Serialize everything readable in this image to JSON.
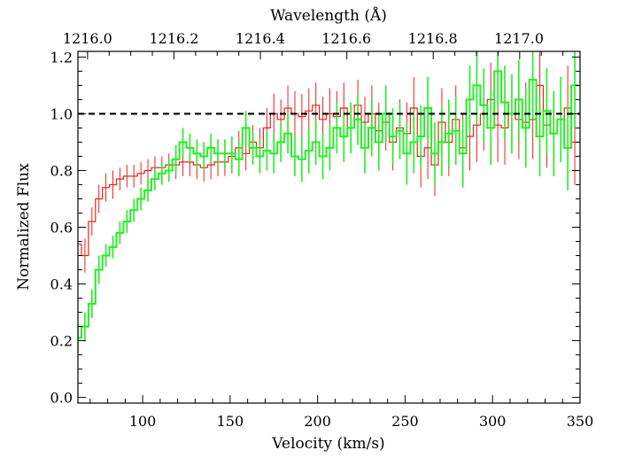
{
  "chart_data": {
    "type": "line",
    "step": true,
    "title": "",
    "xlabel": "Velocity (km/s)",
    "ylabel": "Normalized Flux",
    "top_xlabel": "Wavelength (Å)",
    "xlim": [
      63,
      350
    ],
    "ylim": [
      -0.02,
      1.22
    ],
    "x_ticks": [
      100,
      150,
      200,
      250,
      300,
      350
    ],
    "x_tick_labels": [
      "100",
      "150",
      "200",
      "250",
      "300",
      "350"
    ],
    "y_ticks": [
      0.0,
      0.2,
      0.4,
      0.6,
      0.8,
      1.0,
      1.2
    ],
    "y_tick_labels": [
      "0.0",
      "0.2",
      "0.4",
      "0.6",
      "0.8",
      "1.0",
      "1.2"
    ],
    "top_ticks": [
      1216.0,
      1216.2,
      1216.4,
      1216.6,
      1216.8,
      1217.0
    ],
    "top_tick_labels": [
      "1216.0",
      "1216.2",
      "1216.4",
      "1216.6",
      "1216.8",
      "1217.0"
    ],
    "top_tick_velocity": [
      68.5,
      117.9,
      167.2,
      216.5,
      265.8,
      315.1
    ],
    "reference_line": {
      "y": 1.0,
      "style": "dashed",
      "color": "#000000"
    },
    "grid": false,
    "series": [
      {
        "color": "#ee2020",
        "style": "step-with-errorbars",
        "x": [
          63,
          67,
          71,
          75,
          79,
          83,
          87,
          91,
          95,
          99,
          103,
          107,
          111,
          115,
          119,
          123,
          127,
          131,
          135,
          139,
          143,
          147,
          151,
          155,
          159,
          163,
          167,
          171,
          175,
          179,
          183,
          187,
          191,
          195,
          199,
          203,
          207,
          211,
          215,
          219,
          223,
          227,
          231,
          235,
          239,
          243,
          247,
          251,
          255,
          259,
          263,
          267,
          271,
          275,
          279,
          283,
          287,
          291,
          295,
          299,
          303,
          307,
          311,
          315,
          319,
          323,
          327,
          331,
          335,
          339,
          343,
          347
        ],
        "y": [
          0.54,
          0.5,
          0.62,
          0.7,
          0.74,
          0.75,
          0.77,
          0.78,
          0.78,
          0.79,
          0.8,
          0.81,
          0.81,
          0.82,
          0.82,
          0.83,
          0.83,
          0.82,
          0.81,
          0.82,
          0.83,
          0.83,
          0.85,
          0.88,
          0.86,
          0.9,
          0.88,
          0.95,
          1.0,
          0.98,
          1.02,
          1.0,
          0.99,
          1.01,
          1.03,
          0.98,
          1.0,
          0.99,
          1.02,
          0.95,
          1.03,
          0.97,
          1.0,
          0.94,
          0.97,
          0.9,
          0.95,
          0.93,
          1.02,
          0.85,
          0.88,
          0.82,
          0.97,
          0.9,
          0.98,
          0.88,
          0.92,
          0.96,
          1.0,
          1.05,
          0.96,
          0.95,
          1.0,
          0.98,
          0.97,
          0.98,
          1.1,
          0.96,
          0.93,
          0.98,
          1.02,
          0.9
        ],
        "err": [
          0.06,
          0.06,
          0.05,
          0.05,
          0.05,
          0.05,
          0.04,
          0.04,
          0.04,
          0.04,
          0.04,
          0.04,
          0.04,
          0.04,
          0.05,
          0.05,
          0.05,
          0.05,
          0.05,
          0.05,
          0.05,
          0.05,
          0.06,
          0.06,
          0.06,
          0.06,
          0.07,
          0.07,
          0.07,
          0.07,
          0.08,
          0.08,
          0.08,
          0.08,
          0.08,
          0.08,
          0.09,
          0.09,
          0.09,
          0.09,
          0.09,
          0.09,
          0.1,
          0.1,
          0.1,
          0.1,
          0.1,
          0.11,
          0.11,
          0.11,
          0.11,
          0.11,
          0.12,
          0.12,
          0.12,
          0.12,
          0.12,
          0.13,
          0.13,
          0.13,
          0.13,
          0.13,
          0.14,
          0.14,
          0.14,
          0.14,
          0.14,
          0.15,
          0.15,
          0.15,
          0.15,
          0.15
        ]
      },
      {
        "color": "#22ee22",
        "style": "step-with-errorbars",
        "x": [
          63,
          67,
          71,
          75,
          79,
          83,
          87,
          91,
          95,
          99,
          103,
          107,
          111,
          115,
          119,
          123,
          127,
          131,
          135,
          139,
          143,
          147,
          151,
          155,
          159,
          163,
          167,
          171,
          175,
          179,
          183,
          187,
          191,
          195,
          199,
          203,
          207,
          211,
          215,
          219,
          223,
          227,
          231,
          235,
          239,
          243,
          247,
          251,
          255,
          259,
          263,
          267,
          271,
          275,
          279,
          283,
          287,
          291,
          295,
          299,
          303,
          307,
          311,
          315,
          319,
          323,
          327,
          331,
          335,
          339,
          343,
          347
        ],
        "y": [
          0.21,
          0.25,
          0.33,
          0.45,
          0.5,
          0.53,
          0.58,
          0.62,
          0.66,
          0.7,
          0.73,
          0.77,
          0.79,
          0.8,
          0.84,
          0.9,
          0.88,
          0.86,
          0.85,
          0.88,
          0.86,
          0.86,
          0.86,
          0.84,
          0.95,
          0.88,
          0.85,
          0.87,
          0.86,
          0.9,
          0.93,
          0.85,
          0.84,
          0.87,
          0.9,
          0.85,
          0.88,
          0.95,
          0.92,
          0.95,
          0.98,
          0.88,
          0.95,
          0.9,
          1.0,
          0.92,
          0.94,
          0.86,
          0.9,
          0.92,
          1.02,
          0.86,
          0.9,
          0.93,
          0.94,
          0.86,
          1.05,
          1.1,
          1.03,
          0.95,
          1.15,
          1.04,
          1.0,
          1.05,
          0.95,
          1.12,
          0.92,
          1.01,
          0.93,
          0.98,
          0.88,
          1.1
        ],
        "err": [
          0.05,
          0.05,
          0.05,
          0.05,
          0.04,
          0.04,
          0.04,
          0.04,
          0.04,
          0.04,
          0.04,
          0.04,
          0.04,
          0.04,
          0.05,
          0.05,
          0.05,
          0.05,
          0.05,
          0.05,
          0.05,
          0.05,
          0.06,
          0.06,
          0.06,
          0.06,
          0.06,
          0.07,
          0.07,
          0.07,
          0.07,
          0.07,
          0.08,
          0.08,
          0.08,
          0.08,
          0.08,
          0.09,
          0.09,
          0.09,
          0.09,
          0.09,
          0.1,
          0.1,
          0.1,
          0.1,
          0.1,
          0.11,
          0.11,
          0.11,
          0.11,
          0.11,
          0.12,
          0.12,
          0.12,
          0.12,
          0.12,
          0.13,
          0.13,
          0.13,
          0.13,
          0.13,
          0.14,
          0.14,
          0.14,
          0.14,
          0.14,
          0.15,
          0.15,
          0.15,
          0.15,
          0.15
        ]
      }
    ]
  }
}
